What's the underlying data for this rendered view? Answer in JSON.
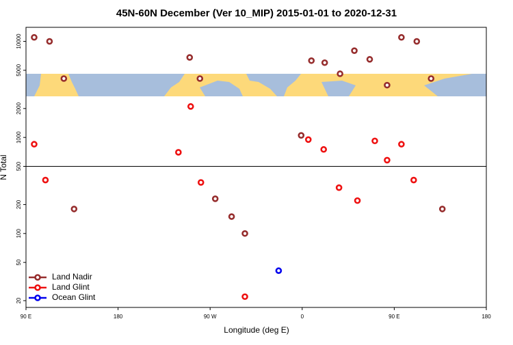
{
  "chart_data": {
    "type": "scatter",
    "title": "45N-60N December (Ver 10_MIP)   2015-01-01 to 2020-12-31",
    "x_label": "Longitude (deg E)",
    "y_label": "N Total",
    "log_y": true,
    "hline": 500,
    "legend": "bottom-left",
    "xlim": [
      90,
      540
    ],
    "ylim": [
      17,
      14000
    ],
    "xticks": [
      {
        "value": 90,
        "label": "90 E"
      },
      180,
      {
        "value": 270,
        "label": "90 W"
      },
      {
        "value": 360,
        "label": "0"
      },
      {
        "value": 450,
        "label": "90 E"
      },
      {
        "value": 540,
        "label": "180"
      }
    ],
    "yticks": [
      20,
      50,
      100,
      200,
      500,
      1000,
      2000,
      5000,
      10000
    ],
    "series": [
      {
        "name": "Land Nadir",
        "color": "#962d2d",
        "x": [
          98,
          113,
          127,
          137,
          250,
          260,
          275,
          291,
          304,
          359,
          369,
          382,
          397,
          411,
          426,
          443,
          457,
          472,
          486,
          497
        ],
        "values": [
          11000,
          10000,
          4100,
          180,
          6800,
          4100,
          230,
          150,
          100,
          1050,
          6300,
          6000,
          4600,
          8000,
          6500,
          3500,
          11000,
          10000,
          4100,
          180
        ]
      },
      {
        "name": "Land Glint",
        "color": "#ee1111",
        "x": [
          98,
          109,
          239,
          251,
          261,
          304,
          366,
          381,
          396,
          414,
          431,
          443,
          457,
          469
        ],
        "values": [
          850,
          360,
          700,
          2100,
          340,
          22,
          950,
          750,
          300,
          220,
          920,
          580,
          850,
          360
        ]
      },
      {
        "name": "Ocean Glint",
        "color": "#0000ee",
        "x": [
          337
        ],
        "values": [
          41
        ]
      }
    ]
  }
}
